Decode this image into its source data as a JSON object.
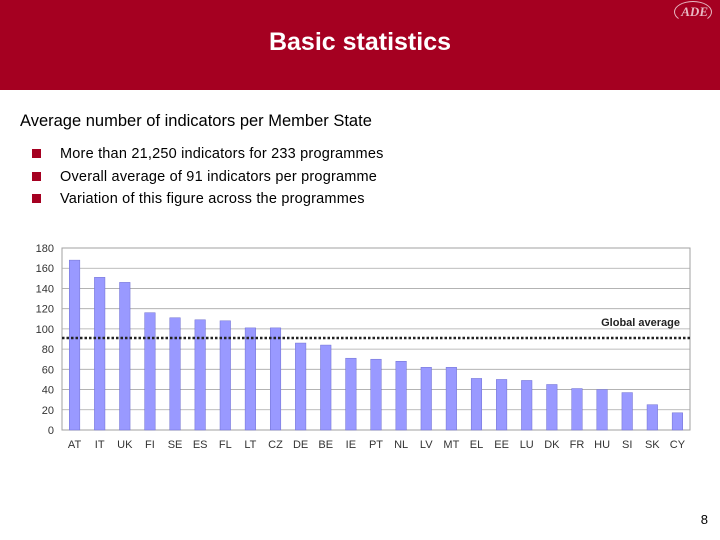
{
  "header": {
    "title": "Basic statistics",
    "logo": "ADE"
  },
  "subtitle": "Average number of indicators per Member State",
  "bullets": [
    "More than 21,250 indicators for 233 programmes",
    "Overall average of 91 indicators per programme",
    "Variation of this figure across the programmes"
  ],
  "page_number": "8",
  "colors": {
    "header": "#a50021",
    "bar": "#9999ff",
    "bullet": "#a50021"
  },
  "chart_data": {
    "type": "bar",
    "categories": [
      "AT",
      "IT",
      "UK",
      "FI",
      "SE",
      "ES",
      "FL",
      "LT",
      "CZ",
      "DE",
      "BE",
      "IE",
      "PT",
      "NL",
      "LV",
      "MT",
      "EL",
      "EE",
      "LU",
      "DK",
      "FR",
      "HU",
      "SI",
      "SK",
      "CY"
    ],
    "values": [
      168,
      151,
      146,
      116,
      111,
      109,
      108,
      101,
      101,
      86,
      84,
      71,
      70,
      68,
      62,
      62,
      51,
      50,
      49,
      45,
      41,
      40,
      37,
      25,
      17
    ],
    "ylim": [
      0,
      180
    ],
    "yticks": [
      "0",
      "20",
      "40",
      "60",
      "80",
      "100",
      "120",
      "140",
      "160",
      "180"
    ],
    "grid": true,
    "reference_line": {
      "value": 91,
      "label": "Global average"
    },
    "title": "",
    "xlabel": "",
    "ylabel": ""
  }
}
